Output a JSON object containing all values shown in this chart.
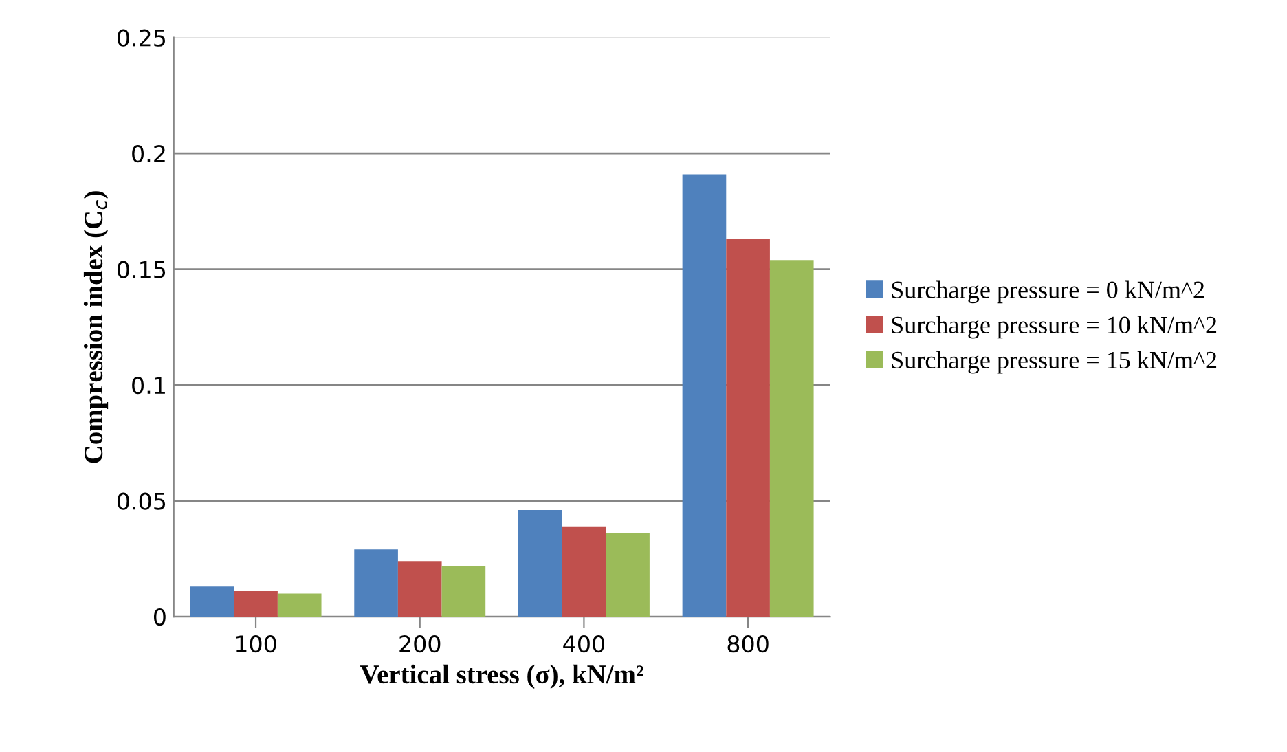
{
  "chart_data": {
    "type": "bar",
    "xlabel": "Vertical stress (σ), kN/m²",
    "ylabel": "Compression index (C$_{c}$)",
    "categories": [
      "100",
      "200",
      "400",
      "800"
    ],
    "series": [
      {
        "name": "Surcharge pressure = 0 kN/m^2",
        "color": "#4f81bd",
        "values": [
          0.013,
          0.029,
          0.046,
          0.191
        ]
      },
      {
        "name": "Surcharge pressure = 10 kN/m^2",
        "color": "#c0504d",
        "values": [
          0.011,
          0.024,
          0.039,
          0.163
        ]
      },
      {
        "name": "Surcharge pressure = 15 kN/m^2",
        "color": "#9bbb59",
        "values": [
          0.01,
          0.022,
          0.036,
          0.154
        ]
      }
    ],
    "ylim": [
      0,
      0.25
    ],
    "yticks": [
      0,
      0.05,
      0.1,
      0.15,
      0.2,
      0.25
    ],
    "grid": "y",
    "legend": "right"
  }
}
